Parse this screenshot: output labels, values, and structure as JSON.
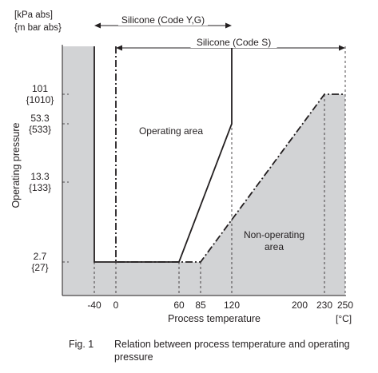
{
  "chart_data": {
    "type": "line",
    "units": {
      "y_line1": "[kPa abs]",
      "y_line2": "{m bar abs}",
      "x": "[°C]"
    },
    "ylabel": "Operating pressure",
    "xlabel": "Process temperature",
    "x_ticks": [
      "-40",
      "0",
      "60",
      "85",
      "120",
      "200",
      "230",
      "250"
    ],
    "x_tick_values": [
      -40,
      0,
      60,
      85,
      120,
      200,
      230,
      250
    ],
    "y_ticks": [
      {
        "kpa": "101",
        "mbar": "{1010}",
        "value": 101
      },
      {
        "kpa": "53.3",
        "mbar": "{533}",
        "value": 53.3
      },
      {
        "kpa": "13.3",
        "mbar": "{133}",
        "value": 13.3
      },
      {
        "kpa": "2.7",
        "mbar": "{27}",
        "value": 2.7
      }
    ],
    "series": [
      {
        "name": "Silicone (Code Y,G)",
        "style": "solid",
        "x": [
          -40,
          -40,
          60,
          120,
          120
        ],
        "y": [
          110,
          2.7,
          2.7,
          53.3,
          110
        ]
      },
      {
        "name": "Silicone (Code S)",
        "style": "dash-dot",
        "x": [
          0,
          0,
          85,
          230,
          250
        ],
        "y": [
          110,
          2.7,
          2.7,
          101,
          101
        ]
      }
    ],
    "range_arrows": [
      {
        "label": "Silicone (Code Y,G)",
        "from": -40,
        "to": 120
      },
      {
        "label": "Silicone (Code S)",
        "from": 0,
        "to": 250
      }
    ],
    "regions": {
      "operating": "Operating area",
      "non_operating_line1": "Non-operating",
      "non_operating_line2": "area"
    },
    "shade_color": "#d2d3d5"
  },
  "caption": {
    "fig": "Fig. 1",
    "text": "Relation between process temperature and operating pressure"
  }
}
